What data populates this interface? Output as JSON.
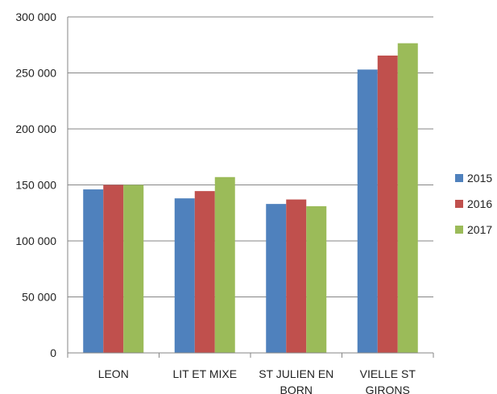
{
  "chart_data": {
    "type": "bar",
    "categories": [
      [
        "LEON"
      ],
      [
        "LIT ET MIXE"
      ],
      [
        "ST JULIEN EN",
        "BORN"
      ],
      [
        "VIELLE ST",
        "GIRONS"
      ]
    ],
    "series": [
      {
        "name": "2015",
        "color": "#4f81bd",
        "values": [
          146000,
          138000,
          133000,
          253000
        ]
      },
      {
        "name": "2016",
        "color": "#c0504d",
        "values": [
          150000,
          144500,
          137000,
          265500
        ]
      },
      {
        "name": "2017",
        "color": "#9bbb59",
        "values": [
          150000,
          157000,
          131000,
          276500
        ]
      }
    ],
    "ylim": [
      0,
      300000
    ],
    "yticks": [
      {
        "value": 0,
        "label": "0"
      },
      {
        "value": 50000,
        "label": "50 000"
      },
      {
        "value": 100000,
        "label": "100 000"
      },
      {
        "value": 150000,
        "label": "150 000"
      },
      {
        "value": 200000,
        "label": "200 000"
      },
      {
        "value": 250000,
        "label": "250 000"
      },
      {
        "value": 300000,
        "label": "300 000"
      }
    ],
    "grid": true,
    "legend_position": "right",
    "title": "",
    "xlabel": "",
    "ylabel": ""
  }
}
